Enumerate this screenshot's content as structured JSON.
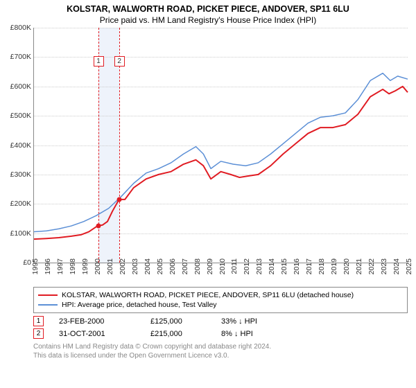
{
  "title": "KOLSTAR, WALWORTH ROAD, PICKET PIECE, ANDOVER, SP11 6LU",
  "subtitle": "Price paid vs. HM Land Registry's House Price Index (HPI)",
  "chart": {
    "type": "line",
    "x_start_year": 1995,
    "x_end_year": 2025,
    "x_ticks": [
      1995,
      1996,
      1997,
      1998,
      1999,
      2000,
      2001,
      2002,
      2003,
      2004,
      2005,
      2006,
      2007,
      2008,
      2009,
      2010,
      2011,
      2012,
      2013,
      2014,
      2015,
      2016,
      2017,
      2018,
      2019,
      2020,
      2021,
      2022,
      2023,
      2024,
      2025
    ],
    "ylim": [
      0,
      800000
    ],
    "ytick_step": 100000,
    "ytick_labels": [
      "£0",
      "£100K",
      "£200K",
      "£300K",
      "£400K",
      "£500K",
      "£600K",
      "£700K",
      "£800K"
    ],
    "grid_color": "#cccccc",
    "axis_color": "#888888",
    "background_color": "#ffffff",
    "band": {
      "from_year": 2000.15,
      "to_year": 2001.83,
      "fill": "#eef3fb"
    },
    "event_lines": [
      {
        "year": 2000.15,
        "color": "#e01b22",
        "marker": "1",
        "marker_top_pct": 12
      },
      {
        "year": 2001.83,
        "color": "#e01b22",
        "marker": "2",
        "marker_top_pct": 12
      }
    ],
    "series": [
      {
        "key": "property",
        "color": "#e01b22",
        "width": 2,
        "points": [
          [
            1995.0,
            80000
          ],
          [
            1996.0,
            82000
          ],
          [
            1997.0,
            85000
          ],
          [
            1998.0,
            90000
          ],
          [
            1998.8,
            95000
          ],
          [
            1999.4,
            105000
          ],
          [
            2000.1,
            125000
          ],
          [
            2000.5,
            128000
          ],
          [
            2000.9,
            140000
          ],
          [
            2001.3,
            175000
          ],
          [
            2001.83,
            215000
          ],
          [
            2002.3,
            215000
          ],
          [
            2003.0,
            255000
          ],
          [
            2004.0,
            285000
          ],
          [
            2005.0,
            300000
          ],
          [
            2006.0,
            310000
          ],
          [
            2007.0,
            335000
          ],
          [
            2008.0,
            350000
          ],
          [
            2008.6,
            330000
          ],
          [
            2009.2,
            285000
          ],
          [
            2010.0,
            310000
          ],
          [
            2010.8,
            300000
          ],
          [
            2011.5,
            290000
          ],
          [
            2012.2,
            295000
          ],
          [
            2013.0,
            300000
          ],
          [
            2014.0,
            330000
          ],
          [
            2015.0,
            370000
          ],
          [
            2016.0,
            405000
          ],
          [
            2017.0,
            440000
          ],
          [
            2018.0,
            460000
          ],
          [
            2019.0,
            460000
          ],
          [
            2020.0,
            470000
          ],
          [
            2021.0,
            505000
          ],
          [
            2022.0,
            565000
          ],
          [
            2023.0,
            590000
          ],
          [
            2023.5,
            575000
          ],
          [
            2024.0,
            585000
          ],
          [
            2024.6,
            600000
          ],
          [
            2025.0,
            580000
          ]
        ]
      },
      {
        "key": "hpi",
        "color": "#5b8fd6",
        "width": 1.5,
        "points": [
          [
            1995.0,
            105000
          ],
          [
            1996.0,
            108000
          ],
          [
            1997.0,
            115000
          ],
          [
            1998.0,
            125000
          ],
          [
            1999.0,
            140000
          ],
          [
            2000.0,
            160000
          ],
          [
            2001.0,
            185000
          ],
          [
            2002.0,
            225000
          ],
          [
            2003.0,
            270000
          ],
          [
            2004.0,
            305000
          ],
          [
            2005.0,
            320000
          ],
          [
            2006.0,
            340000
          ],
          [
            2007.0,
            370000
          ],
          [
            2008.0,
            395000
          ],
          [
            2008.6,
            370000
          ],
          [
            2009.2,
            320000
          ],
          [
            2010.0,
            345000
          ],
          [
            2011.0,
            335000
          ],
          [
            2012.0,
            330000
          ],
          [
            2013.0,
            340000
          ],
          [
            2014.0,
            370000
          ],
          [
            2015.0,
            405000
          ],
          [
            2016.0,
            440000
          ],
          [
            2017.0,
            475000
          ],
          [
            2018.0,
            495000
          ],
          [
            2019.0,
            500000
          ],
          [
            2020.0,
            510000
          ],
          [
            2021.0,
            555000
          ],
          [
            2022.0,
            620000
          ],
          [
            2023.0,
            645000
          ],
          [
            2023.6,
            620000
          ],
          [
            2024.2,
            635000
          ],
          [
            2025.0,
            625000
          ]
        ]
      }
    ],
    "sale_points": [
      {
        "year": 2000.15,
        "value": 125000,
        "color": "#e01b22"
      },
      {
        "year": 2001.83,
        "value": 215000,
        "color": "#e01b22"
      }
    ]
  },
  "legend": {
    "items": [
      {
        "color": "#e01b22",
        "label": "KOLSTAR, WALWORTH ROAD, PICKET PIECE, ANDOVER, SP11 6LU (detached house)"
      },
      {
        "color": "#5b8fd6",
        "label": "HPI: Average price, detached house, Test Valley"
      }
    ]
  },
  "sales": [
    {
      "marker": "1",
      "marker_color": "#e01b22",
      "date": "23-FEB-2000",
      "price": "£125,000",
      "delta": "33% ↓ HPI"
    },
    {
      "marker": "2",
      "marker_color": "#e01b22",
      "date": "31-OCT-2001",
      "price": "£215,000",
      "delta": "8% ↓ HPI"
    }
  ],
  "footer_line1": "Contains HM Land Registry data © Crown copyright and database right 2024.",
  "footer_line2": "This data is licensed under the Open Government Licence v3.0."
}
